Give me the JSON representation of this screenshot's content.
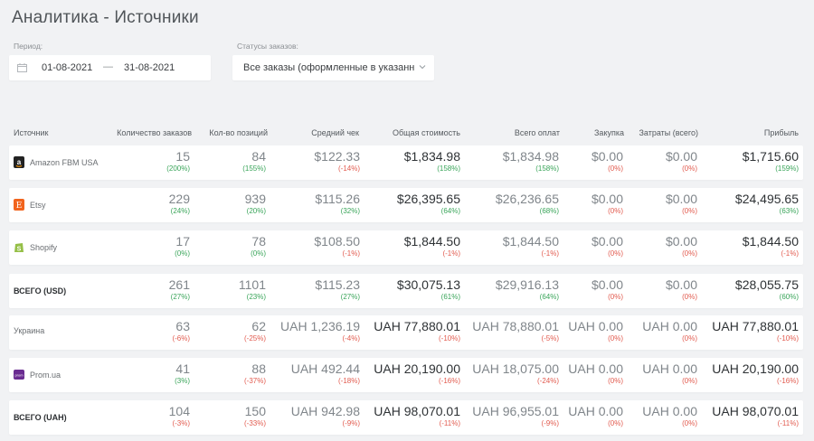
{
  "page": {
    "title": "Аналитика - Источники"
  },
  "filters": {
    "period_label": "Период:",
    "date_from": "01-08-2021",
    "date_separator": "—",
    "date_to": "31-08-2021",
    "status_label": "Статусы заказов:",
    "status_value": "Все заказы (оформленные в указанный период)"
  },
  "columns": {
    "source": "Источник",
    "orders": "Количество заказов",
    "items": "Кол-во позиций",
    "avg": "Средний чек",
    "total": "Общая стоимость",
    "paid": "Всего оплат",
    "purchase": "Закупка",
    "costs": "Затраты (всего)",
    "profit": "Прибыль"
  },
  "colors": {
    "positive": "#3aa55a",
    "negative": "#e25b4f",
    "amazon": "#222222",
    "etsy": "#f1641e",
    "shopify": "#95bf47",
    "prom": "#6a2c91"
  },
  "rows": [
    {
      "source": "Amazon FBM USA",
      "icon": "amazon-icon",
      "bold": false,
      "orders": "15",
      "orders_p": "(200%)",
      "items": "84",
      "items_p": "(155%)",
      "avg": "$122.33",
      "avg_p": "(-14%)",
      "total": "$1,834.98",
      "total_p": "(158%)",
      "paid": "$1,834.98",
      "paid_p": "(158%)",
      "purchase": "$0.00",
      "purchase_p": "(0%)",
      "costs": "$0.00",
      "costs_p": "(0%)",
      "profit": "$1,715.60",
      "profit_p": "(159%)"
    },
    {
      "source": "Etsy",
      "icon": "etsy-icon",
      "bold": false,
      "orders": "229",
      "orders_p": "(24%)",
      "items": "939",
      "items_p": "(20%)",
      "avg": "$115.26",
      "avg_p": "(32%)",
      "total": "$26,395.65",
      "total_p": "(64%)",
      "paid": "$26,236.65",
      "paid_p": "(68%)",
      "purchase": "$0.00",
      "purchase_p": "(0%)",
      "costs": "$0.00",
      "costs_p": "(0%)",
      "profit": "$24,495.65",
      "profit_p": "(63%)"
    },
    {
      "source": "Shopify",
      "icon": "shopify-icon",
      "bold": false,
      "orders": "17",
      "orders_p": "(0%)",
      "items": "78",
      "items_p": "(0%)",
      "avg": "$108.50",
      "avg_p": "(-1%)",
      "total": "$1,844.50",
      "total_p": "(-1%)",
      "paid": "$1,844.50",
      "paid_p": "(-1%)",
      "purchase": "$0.00",
      "purchase_p": "(0%)",
      "costs": "$0.00",
      "costs_p": "(0%)",
      "profit": "$1,844.50",
      "profit_p": "(-1%)"
    },
    {
      "source": "ВСЕГО (USD)",
      "icon": "",
      "bold": true,
      "orders": "261",
      "orders_p": "(27%)",
      "items": "1101",
      "items_p": "(23%)",
      "avg": "$115.23",
      "avg_p": "(27%)",
      "total": "$30,075.13",
      "total_p": "(61%)",
      "paid": "$29,916.13",
      "paid_p": "(64%)",
      "purchase": "$0.00",
      "purchase_p": "(0%)",
      "costs": "$0.00",
      "costs_p": "(0%)",
      "profit": "$28,055.75",
      "profit_p": "(60%)"
    },
    {
      "source": "Украина",
      "icon": "",
      "bold": false,
      "orders": "63",
      "orders_p": "(-6%)",
      "items": "62",
      "items_p": "(-25%)",
      "avg": "UAH 1,236.19",
      "avg_p": "(-4%)",
      "total": "UAH 77,880.01",
      "total_p": "(-10%)",
      "paid": "UAH 78,880.01",
      "paid_p": "(-5%)",
      "purchase": "UAH 0.00",
      "purchase_p": "(0%)",
      "costs": "UAH 0.00",
      "costs_p": "(0%)",
      "profit": "UAH 77,880.01",
      "profit_p": "(-10%)"
    },
    {
      "source": "Prom.ua",
      "icon": "prom-icon",
      "bold": false,
      "orders": "41",
      "orders_p": "(3%)",
      "items": "88",
      "items_p": "(-37%)",
      "avg": "UAH 492.44",
      "avg_p": "(-18%)",
      "total": "UAH 20,190.00",
      "total_p": "(-16%)",
      "paid": "UAH 18,075.00",
      "paid_p": "(-24%)",
      "purchase": "UAH 0.00",
      "purchase_p": "(0%)",
      "costs": "UAH 0.00",
      "costs_p": "(0%)",
      "profit": "UAH 20,190.00",
      "profit_p": "(-16%)"
    },
    {
      "source": "ВСЕГО (UAH)",
      "icon": "",
      "bold": true,
      "orders": "104",
      "orders_p": "(-3%)",
      "items": "150",
      "items_p": "(-33%)",
      "avg": "UAH 942.98",
      "avg_p": "(-9%)",
      "total": "UAH 98,070.01",
      "total_p": "(-11%)",
      "paid": "UAH 96,955.01",
      "paid_p": "(-9%)",
      "purchase": "UAH 0.00",
      "purchase_p": "(0%)",
      "costs": "UAH 0.00",
      "costs_p": "(0%)",
      "profit": "UAH 98,070.01",
      "profit_p": "(-11%)"
    }
  ]
}
